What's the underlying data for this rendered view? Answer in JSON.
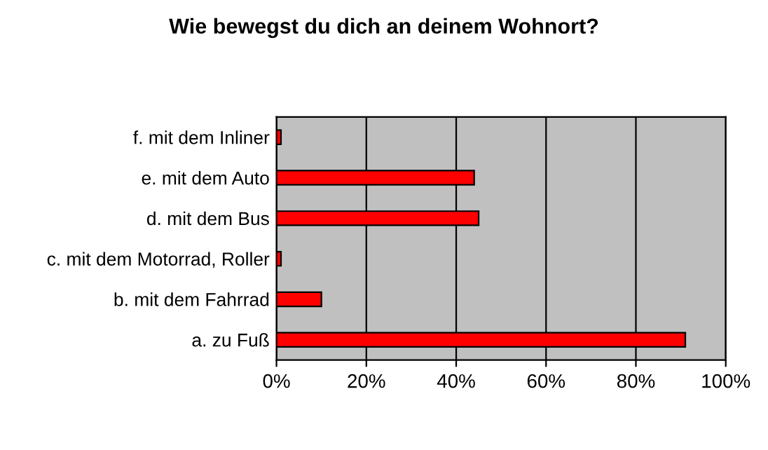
{
  "chart_data": {
    "type": "bar",
    "orientation": "horizontal",
    "title": "Wie bewegst du dich an deinem Wohnort?",
    "categories": [
      "f. mit dem Inliner",
      "e. mit dem Auto",
      "d. mit dem Bus",
      "c. mit dem Motorrad, Roller",
      "b. mit dem Fahrrad",
      "a. zu Fuß"
    ],
    "values": [
      1,
      44,
      45,
      1,
      10,
      91
    ],
    "color": "#ff0000",
    "xlim": [
      0,
      100
    ],
    "xticks": [
      {
        "value": 0,
        "label": "0%"
      },
      {
        "value": 20,
        "label": "20%"
      },
      {
        "value": 40,
        "label": "40%"
      },
      {
        "value": 60,
        "label": "60%"
      },
      {
        "value": 80,
        "label": "80%"
      },
      {
        "value": 100,
        "label": "100%"
      }
    ],
    "grid": "x",
    "legend": false
  }
}
